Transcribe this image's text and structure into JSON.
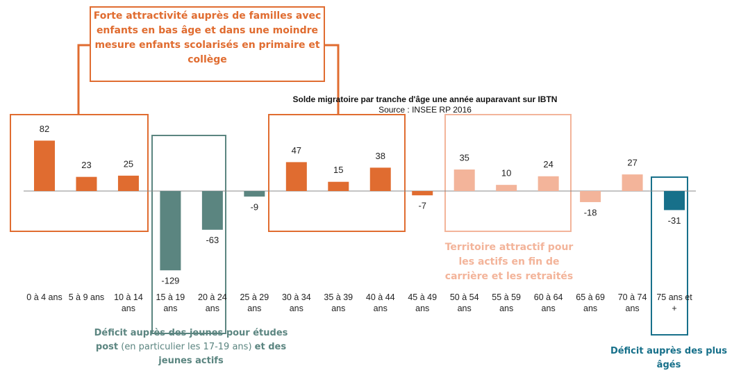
{
  "chart_data": {
    "type": "bar",
    "title": "Solde migratoire par tranche d'âge une année auparavant sur IBTN",
    "subtitle": "Source : INSEE RP 2016",
    "categories": [
      "0 à 4 ans",
      "5 à 9 ans",
      "10 à 14 ans",
      "15 à 19 ans",
      "20 à 24 ans",
      "25 à 29 ans",
      "30 à 34 ans",
      "35 à 39 ans",
      "40 à 44 ans",
      "45 à 49 ans",
      "50 à 54 ans",
      "55 à 59 ans",
      "60 à 64 ans",
      "65 à 69 ans",
      "70 à 74 ans",
      "75 ans et +"
    ],
    "values": [
      82,
      23,
      25,
      -129,
      -63,
      -9,
      47,
      15,
      38,
      -7,
      35,
      10,
      24,
      -18,
      27,
      -31
    ],
    "colors": [
      "#e06c30",
      "#e06c30",
      "#e06c30",
      "#5b8580",
      "#5b8580",
      "#5b8580",
      "#e06c30",
      "#e06c30",
      "#e06c30",
      "#e06c30",
      "#f3b49a",
      "#f3b49a",
      "#f3b49a",
      "#f3b49a",
      "#f3b49a",
      "#17708a"
    ],
    "annotations": [
      {
        "color": "#e06c30",
        "parts": [
          {
            "text": "Forte attractivité auprès de familles avec enfants en bas âge et dans une moindre mesure enfants scolarisés en primaire et collège",
            "bold": true
          }
        ]
      },
      {
        "color": "#f3b49a",
        "parts": [
          {
            "text": "Territoire attractif pour les actifs en fin de carrière et les retraités",
            "bold": true
          }
        ]
      },
      {
        "color": "#5b8580",
        "parts": [
          {
            "text": "Déficit auprès des jeunes pour études post",
            "bold": true
          },
          {
            "text": " (en particulier les 17-19 ans) ",
            "bold": false
          },
          {
            "text": "et des jeunes actifs",
            "bold": true
          }
        ]
      },
      {
        "color": "#17708a",
        "parts": [
          {
            "text": "Déficit auprès des plus âgés",
            "bold": true
          }
        ]
      }
    ]
  }
}
